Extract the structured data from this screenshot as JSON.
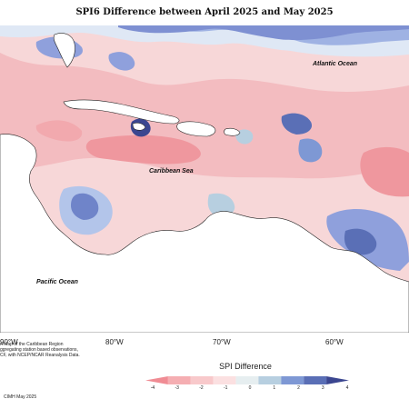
{
  "title": "SPI6 Difference between April 2025 and May 2025",
  "oceans": {
    "atlantic": "Atlantic Ocean",
    "caribbean": "Caribbean Sea",
    "pacific": "Pacific Ocean"
  },
  "axis": {
    "lon_labels": [
      "90°W",
      "80°W",
      "70°W",
      "60°W"
    ]
  },
  "footer": {
    "note_line1": "n Map of the Caribbean Region",
    "note_line2": "ggregating station based observations,",
    "note_line3": "CF, with NCEP/NCAR Reanalysis Data.",
    "credit": "CIMH May 2025"
  },
  "legend": {
    "title": "SPI Difference",
    "ticks": [
      "-4",
      "-3",
      "-2",
      "-1",
      "0",
      "1",
      "2",
      "3",
      "4"
    ],
    "colors": [
      "#f08c94",
      "#f5aeb2",
      "#f8c9cb",
      "#fbe0e1",
      "#e6eef0",
      "#b7cfe0",
      "#7e98d4",
      "#5a6fb6",
      "#3b4690"
    ]
  }
}
